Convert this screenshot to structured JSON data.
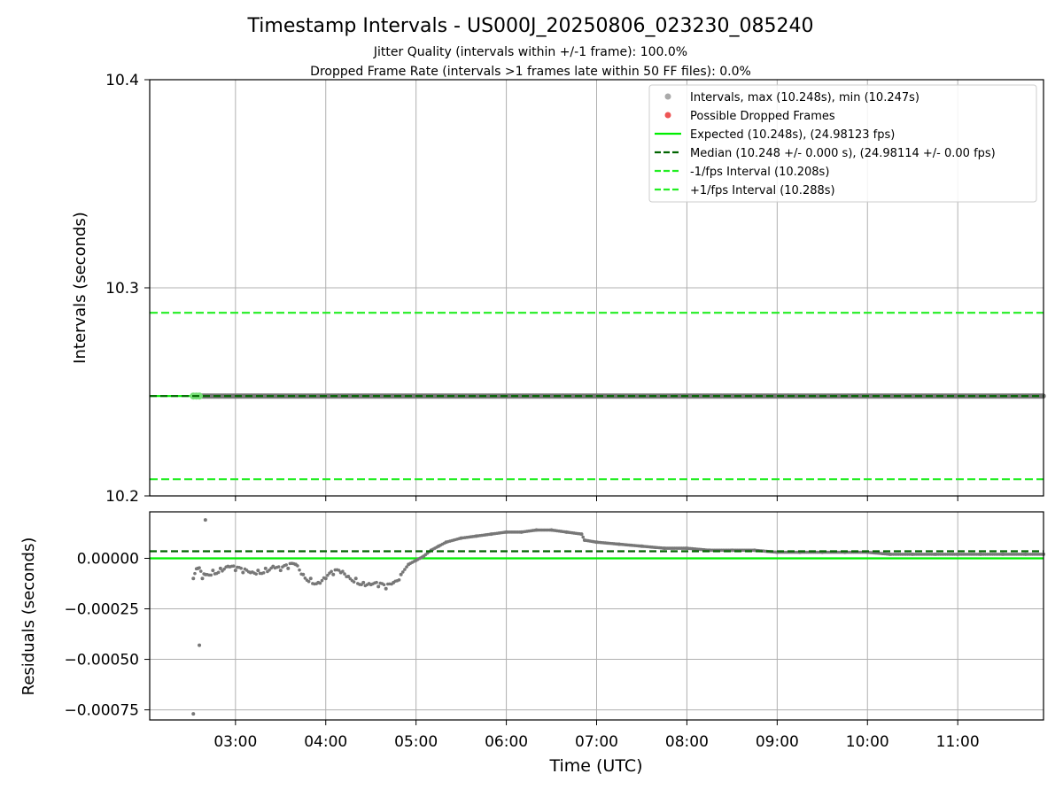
{
  "title": "Timestamp Intervals - US000J_20250806_023230_085240",
  "subtitle_lines": [
    "Jitter Quality (intervals within +/-1 frame): 100.0%",
    "Dropped Frame Rate (intervals >1 frames late within 50 FF files): 0.0%"
  ],
  "colors": {
    "expected": "#00ee00",
    "median": "#006400",
    "interval_bounds": "#22ee22",
    "points": "#777777",
    "points_legend": "#aaaaaa",
    "dropped": "#ee5555",
    "grid": "#b0b0b0"
  },
  "chart_data": [
    {
      "type": "scatter",
      "panel": "intervals",
      "xlabel": "Time (UTC)",
      "ylabel": "Intervals (seconds)",
      "xlim": [
        "02:03",
        "11:57"
      ],
      "ylim": [
        10.2,
        10.4
      ],
      "yticks": [
        "10.2",
        "10.3",
        "10.4"
      ],
      "xticks": [
        "03:00",
        "04:00",
        "05:00",
        "06:00",
        "07:00",
        "08:00",
        "09:00",
        "10:00",
        "11:00"
      ],
      "grid": true,
      "legend_position": "top-right",
      "legend": [
        {
          "label": "Intervals, max (10.248s), min (10.247s)",
          "kind": "dot",
          "color_key": "points_legend"
        },
        {
          "label": "Possible Dropped Frames",
          "kind": "dot",
          "color_key": "dropped"
        },
        {
          "label": "Expected (10.248s), (24.98123 fps)",
          "kind": "solid",
          "color_key": "expected"
        },
        {
          "label": "Median (10.248 +/- 0.000 s), (24.98114 +/- 0.00 fps)",
          "kind": "dashed",
          "color_key": "median"
        },
        {
          "label": "-1/fps Interval (10.208s)",
          "kind": "dashed",
          "color_key": "interval_bounds"
        },
        {
          "label": "+1/fps Interval (10.288s)",
          "kind": "dashed",
          "color_key": "interval_bounds"
        }
      ],
      "lines": {
        "expected": 10.248,
        "median": 10.248,
        "lower": 10.208,
        "upper": 10.288
      },
      "series": [
        {
          "name": "Intervals, max (10.248s), min (10.247s)",
          "x_start": "02:32",
          "x_end": "11:57",
          "y": 10.248
        }
      ]
    },
    {
      "type": "scatter",
      "panel": "residuals",
      "xlabel": "Time (UTC)",
      "ylabel": "Residuals (seconds)",
      "xlim": [
        "02:03",
        "11:57"
      ],
      "ylim": [
        -0.0008,
        0.00023
      ],
      "yticks": [
        "0.00000",
        "−0.00025",
        "−0.00050",
        "−0.00075"
      ],
      "xticks": [
        "03:00",
        "04:00",
        "05:00",
        "06:00",
        "07:00",
        "08:00",
        "09:00",
        "10:00",
        "11:00"
      ],
      "grid": true,
      "lines": {
        "expected": 0.0,
        "median": 3.5e-05
      },
      "series": [
        {
          "name": "residuals",
          "x": [
            "02:32",
            "02:35",
            "02:38",
            "02:40",
            "02:45",
            "02:50",
            "02:55",
            "03:00",
            "03:05",
            "03:10",
            "03:15",
            "03:20",
            "03:25",
            "03:30",
            "03:35",
            "03:40",
            "03:45",
            "03:50",
            "03:55",
            "04:00",
            "04:05",
            "04:10",
            "04:15",
            "04:20",
            "04:25",
            "04:30",
            "04:35",
            "04:40",
            "04:45",
            "04:50",
            "04:55",
            "05:00",
            "05:05",
            "05:10",
            "05:15",
            "05:20",
            "05:30",
            "05:40",
            "05:50",
            "06:00",
            "06:10",
            "06:20",
            "06:30",
            "06:40",
            "06:50",
            "06:52",
            "07:00",
            "07:15",
            "07:30",
            "07:45",
            "08:00",
            "08:15",
            "08:30",
            "08:45",
            "09:00",
            "09:15",
            "09:30",
            "09:45",
            "10:00",
            "10:15",
            "10:30",
            "10:45",
            "11:00",
            "11:15",
            "11:30",
            "11:45",
            "11:57"
          ],
          "y": [
            -0.0001,
            -5e-05,
            -0.0001,
            -8e-05,
            -6e-05,
            -5e-05,
            -4e-05,
            -6e-05,
            -7e-05,
            -7e-05,
            -6e-05,
            -5e-05,
            -4e-05,
            -6e-05,
            -5e-05,
            -3e-05,
            -8e-05,
            -0.0001,
            -0.00012,
            -0.0001,
            -8e-05,
            -7e-05,
            -9e-05,
            -0.0001,
            -0.00012,
            -0.00013,
            -0.00014,
            -0.00015,
            -0.00012,
            -8e-05,
            -3e-05,
            -1e-05,
            1e-05,
            4e-05,
            6e-05,
            8e-05,
            0.0001,
            0.00011,
            0.00012,
            0.00013,
            0.00013,
            0.00014,
            0.00014,
            0.00013,
            0.00012,
            9e-05,
            8e-05,
            7e-05,
            6e-05,
            5e-05,
            5e-05,
            4e-05,
            4e-05,
            4e-05,
            3e-05,
            3e-05,
            3e-05,
            3e-05,
            3e-05,
            2e-05,
            2e-05,
            2e-05,
            2e-05,
            2e-05,
            2e-05,
            2e-05,
            2e-05
          ]
        },
        {
          "name": "outliers",
          "x": [
            "02:32",
            "02:36",
            "02:40"
          ],
          "y": [
            -0.00077,
            -0.00043,
            0.00019
          ]
        }
      ]
    }
  ]
}
